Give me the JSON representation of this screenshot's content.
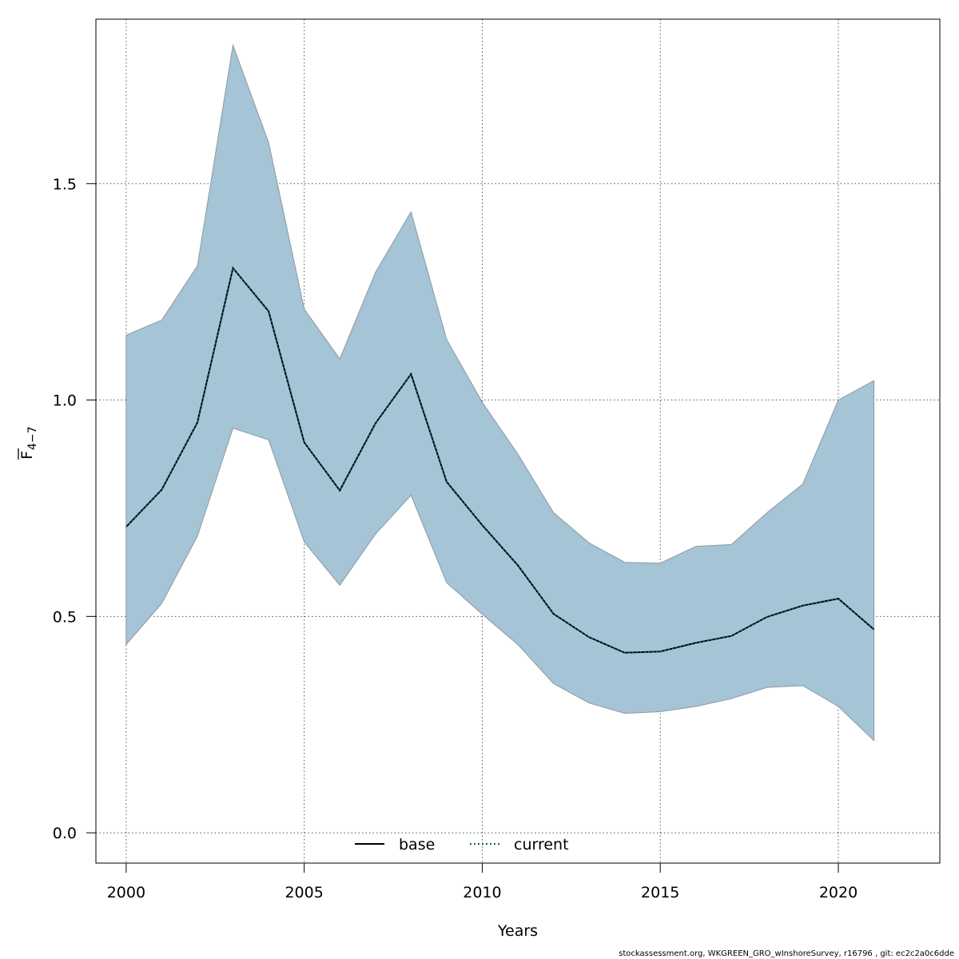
{
  "chart_data": {
    "type": "line",
    "xlabel": "Years",
    "ylabel_main": "F",
    "ylabel_sub": "4−7",
    "xlim": [
      1999.15,
      2022.85
    ],
    "ylim": [
      -0.07,
      1.88
    ],
    "xticks": [
      2000,
      2005,
      2010,
      2015,
      2020
    ],
    "yticks": [
      0.0,
      0.5,
      1.0,
      1.5
    ],
    "ytick_labels": [
      "0.0",
      "0.5",
      "1.0",
      "1.5"
    ],
    "grid": true,
    "x": [
      2000,
      2001,
      2002,
      2003,
      2004,
      2005,
      2006,
      2007,
      2008,
      2009,
      2010,
      2011,
      2012,
      2013,
      2014,
      2015,
      2016,
      2017,
      2018,
      2019,
      2020,
      2021
    ],
    "band": {
      "upper": [
        1.15,
        1.185,
        1.31,
        1.82,
        1.595,
        1.21,
        1.095,
        1.295,
        1.435,
        1.14,
        0.995,
        0.875,
        0.74,
        0.67,
        0.625,
        0.623,
        0.662,
        0.666,
        0.74,
        0.806,
        1.0,
        1.045
      ],
      "lower": [
        0.435,
        0.53,
        0.685,
        0.935,
        0.908,
        0.672,
        0.572,
        0.69,
        0.78,
        0.578,
        0.505,
        0.435,
        0.345,
        0.3,
        0.276,
        0.28,
        0.292,
        0.31,
        0.336,
        0.34,
        0.292,
        0.213
      ],
      "color": "#a5c4d5",
      "edge_color": "#8c9aa3"
    },
    "series": [
      {
        "name": "base",
        "style": "solid",
        "color": "#000000",
        "values": [
          0.707,
          0.793,
          0.948,
          1.305,
          1.205,
          0.902,
          0.791,
          0.946,
          1.06,
          0.811,
          0.711,
          0.618,
          0.506,
          0.452,
          0.416,
          0.419,
          0.439,
          0.455,
          0.499,
          0.525,
          0.541,
          0.47
        ]
      },
      {
        "name": "current",
        "style": "dotted",
        "color": "#1f5a75",
        "values": [
          0.707,
          0.793,
          0.948,
          1.305,
          1.205,
          0.902,
          0.791,
          0.946,
          1.06,
          0.811,
          0.711,
          0.618,
          0.506,
          0.452,
          0.416,
          0.419,
          0.439,
          0.455,
          0.499,
          0.525,
          0.541,
          0.47
        ]
      }
    ],
    "legend": {
      "position": "bottom-center",
      "entries": [
        "base",
        "current"
      ]
    }
  },
  "footer": "stockassessment.org, WKGREEN_GRO_wInshoreSurvey, r16796 , git: ec2c2a0c6dde"
}
